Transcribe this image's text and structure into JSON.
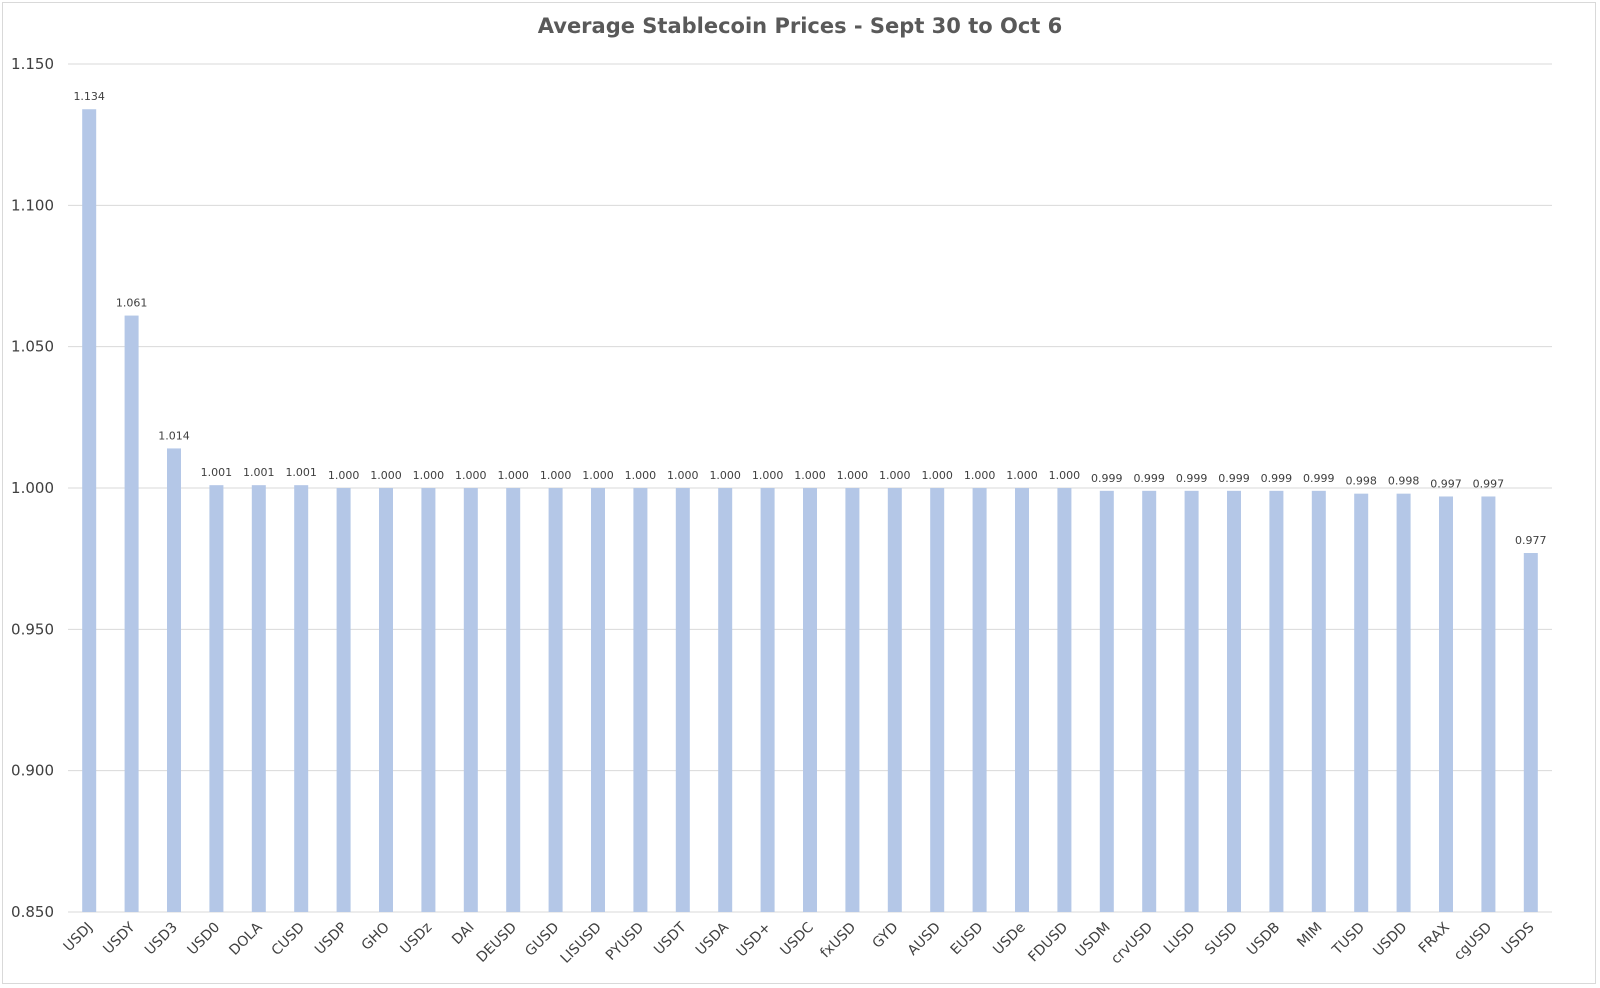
{
  "chart_data": {
    "type": "bar",
    "title": "Average Stablecoin Prices - Sept 30 to Oct 6",
    "xlabel": "",
    "ylabel": "",
    "ylim": [
      0.85,
      1.15
    ],
    "yticks": [
      "0.850",
      "0.900",
      "0.950",
      "1.000",
      "1.050",
      "1.100",
      "1.150"
    ],
    "grid": true,
    "legend": "none",
    "bar_color": "#b4c7e7",
    "categories": [
      "USDJ",
      "USDY",
      "USD3",
      "USD0",
      "DOLA",
      "CUSD",
      "USDP",
      "GHO",
      "USDz",
      "DAI",
      "DEUSD",
      "GUSD",
      "LISUSD",
      "PYUSD",
      "USDT",
      "USDA",
      "USD+",
      "USDC",
      "fxUSD",
      "GYD",
      "AUSD",
      "EUSD",
      "USDe",
      "FDUSD",
      "USDM",
      "crvUSD",
      "LUSD",
      "SUSD",
      "USDB",
      "MIM",
      "TUSD",
      "USDD",
      "FRAX",
      "cgUSD",
      "USDS"
    ],
    "values": [
      1.134,
      1.061,
      1.014,
      1.001,
      1.001,
      1.001,
      1.0,
      1.0,
      1.0,
      1.0,
      1.0,
      1.0,
      1.0,
      1.0,
      1.0,
      1.0,
      1.0,
      1.0,
      1.0,
      1.0,
      1.0,
      1.0,
      1.0,
      1.0,
      0.999,
      0.999,
      0.999,
      0.999,
      0.999,
      0.999,
      0.998,
      0.998,
      0.997,
      0.997,
      0.977
    ],
    "labels": [
      "1.134",
      "1.061",
      "1.014",
      "1.001",
      "1.001",
      "1.001",
      "1.000",
      "1.000",
      "1.000",
      "1.000",
      "1.000",
      "1.000",
      "1.000",
      "1.000",
      "1.000",
      "1.000",
      "1.000",
      "1.000",
      "1.000",
      "1.000",
      "1.000",
      "1.000",
      "1.000",
      "1.000",
      "0.999",
      "0.999",
      "0.999",
      "0.999",
      "0.999",
      "0.999",
      "0.998",
      "0.998",
      "0.997",
      "0.997",
      "0.977"
    ]
  }
}
